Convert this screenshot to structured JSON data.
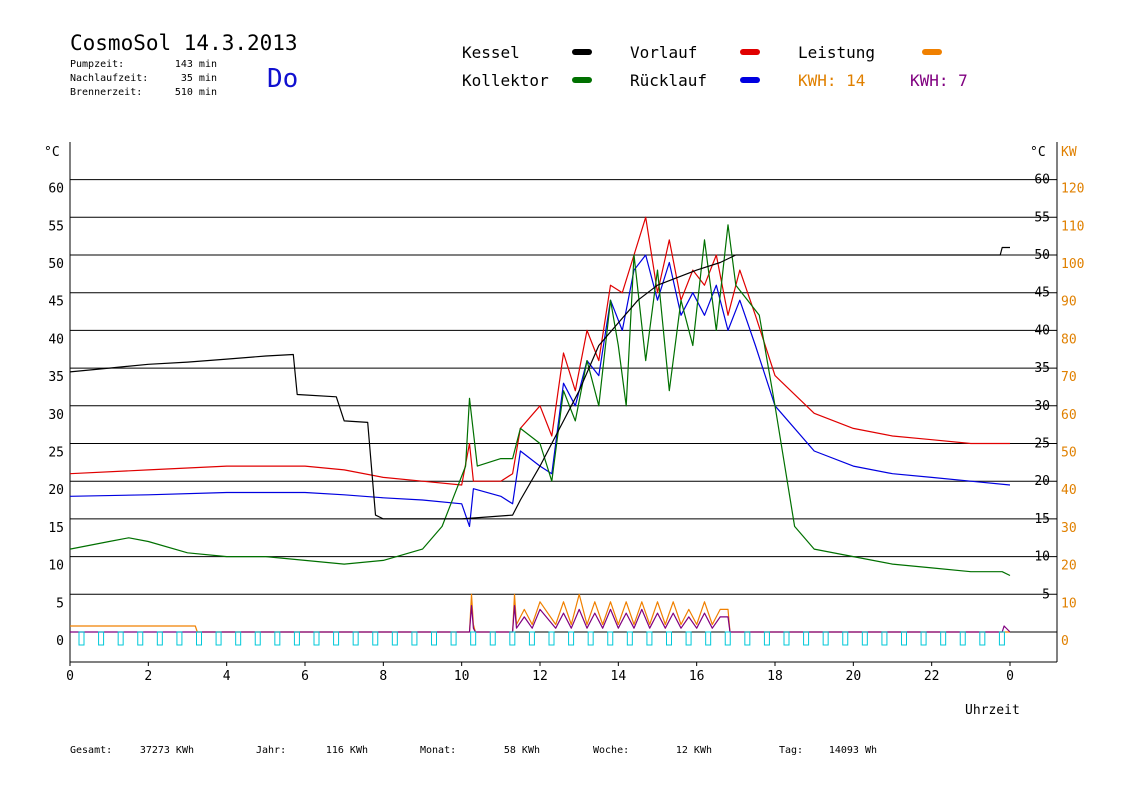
{
  "header": {
    "title": "CosmoSol 14.3.2013",
    "day": "Do",
    "stats": [
      {
        "label": "Pumpzeit:",
        "value": "143 min"
      },
      {
        "label": "Nachlaufzeit:",
        "value": "35 min"
      },
      {
        "label": "Brennerzeit:",
        "value": "510 min"
      }
    ]
  },
  "legend": {
    "items": [
      {
        "label": "Kessel",
        "color": "#000000"
      },
      {
        "label": "Vorlauf",
        "color": "#e00000"
      },
      {
        "label": "Leistung",
        "color": "#f08000"
      },
      {
        "label": "Kollektor",
        "color": "#007000"
      },
      {
        "label": "Rücklauf",
        "color": "#0000e0"
      }
    ],
    "kwh": [
      {
        "label": "KWH: 14",
        "color": "#e08000"
      },
      {
        "label": "KWH: 7",
        "color": "#800080"
      }
    ]
  },
  "footer": {
    "items": [
      {
        "label": "Gesamt:",
        "value": "37273 KWh"
      },
      {
        "label": "Jahr:",
        "value": "116 KWh"
      },
      {
        "label": "Monat:",
        "value": "58 KWh"
      },
      {
        "label": "Woche:",
        "value": "12 KWh"
      },
      {
        "label": "Tag:",
        "value": "14093 Wh"
      }
    ]
  },
  "chart_data": {
    "type": "line",
    "xlabel": "Uhrzeit",
    "ylabel_left": "°C",
    "ylabel_right_temp": "°C",
    "ylabel_right_power": "KW",
    "x_ticks": [
      "0",
      "2",
      "4",
      "6",
      "8",
      "10",
      "12",
      "14",
      "16",
      "18",
      "20",
      "22",
      "0"
    ],
    "xlim": [
      0,
      24
    ],
    "ylim": [
      0,
      65
    ],
    "y_ticks_left": [
      "0",
      "5",
      "10",
      "15",
      "20",
      "25",
      "30",
      "35",
      "40",
      "45",
      "50",
      "55",
      "60"
    ],
    "y_ticks_right_temp": [
      "5",
      "10",
      "15",
      "20",
      "25",
      "30",
      "35",
      "40",
      "45",
      "50",
      "55",
      "60"
    ],
    "y_ticks_right_power": [
      "0",
      "10",
      "20",
      "30",
      "40",
      "50",
      "60",
      "70",
      "80",
      "90",
      "100",
      "110",
      "120"
    ],
    "grid": true,
    "series": [
      {
        "name": "Kessel",
        "color": "#000000",
        "x": [
          0,
          1,
          2,
          3,
          4,
          5,
          5.7,
          5.8,
          6.8,
          7.0,
          7.6,
          7.8,
          8,
          10,
          11.3,
          11.5,
          12,
          12.5,
          13,
          13.5,
          14,
          14.5,
          15,
          16,
          16.6,
          17,
          18,
          20,
          22,
          23.75,
          23.8,
          24
        ],
        "y": [
          34.5,
          35,
          35.5,
          35.8,
          36.2,
          36.6,
          36.8,
          31.5,
          31.2,
          28,
          27.8,
          15.5,
          15,
          15,
          15.5,
          17.5,
          22,
          27,
          32,
          38,
          41,
          44,
          46,
          48,
          49,
          50,
          50,
          50,
          50,
          50,
          51,
          51
        ]
      },
      {
        "name": "Vorlauf",
        "color": "#e00000",
        "x": [
          0,
          2,
          4,
          5,
          6,
          7,
          8,
          9,
          10,
          10.2,
          10.3,
          11,
          11.3,
          11.5,
          12,
          12.3,
          12.6,
          12.9,
          13.2,
          13.5,
          13.8,
          14.1,
          14.4,
          14.7,
          15.0,
          15.3,
          15.6,
          15.9,
          16.2,
          16.5,
          16.8,
          17.1,
          17.5,
          18,
          19,
          20,
          21,
          22,
          23,
          24
        ],
        "y": [
          21,
          21.5,
          22,
          22,
          22,
          21.5,
          20.5,
          20,
          19.5,
          25,
          20,
          20,
          21,
          27,
          30,
          26,
          37,
          32,
          40,
          36,
          46,
          45,
          50,
          55,
          45,
          52,
          44,
          48,
          46,
          50,
          42,
          48,
          42,
          34,
          29,
          27,
          26,
          25.5,
          25,
          25
        ]
      },
      {
        "name": "Rücklauf",
        "color": "#0000e0",
        "x": [
          0,
          2,
          4,
          5,
          6,
          7,
          8,
          9,
          10,
          10.2,
          10.3,
          11,
          11.3,
          11.5,
          12,
          12.3,
          12.6,
          12.9,
          13.2,
          13.5,
          13.8,
          14.1,
          14.4,
          14.7,
          15.0,
          15.3,
          15.6,
          15.9,
          16.2,
          16.5,
          16.8,
          17.1,
          17.5,
          18,
          19,
          20,
          21,
          22,
          23,
          24
        ],
        "y": [
          18,
          18.2,
          18.5,
          18.5,
          18.5,
          18.2,
          17.8,
          17.5,
          17,
          14,
          19,
          18,
          17,
          24,
          22,
          21,
          33,
          30,
          36,
          34,
          44,
          40,
          48,
          50,
          44,
          49,
          42,
          45,
          42,
          46,
          40,
          44,
          38,
          30,
          24,
          22,
          21,
          20.5,
          20,
          19.5
        ]
      },
      {
        "name": "Kollektor",
        "color": "#007000",
        "x": [
          0,
          1,
          1.5,
          2,
          3,
          4,
          5,
          6,
          7,
          8,
          9,
          9.5,
          9.8,
          10.1,
          10.2,
          10.4,
          11,
          11.3,
          11.5,
          12,
          12.3,
          12.6,
          12.9,
          13.2,
          13.5,
          13.8,
          14.0,
          14.2,
          14.4,
          14.7,
          15.0,
          15.3,
          15.6,
          15.9,
          16.2,
          16.5,
          16.8,
          17.0,
          17.3,
          17.6,
          18,
          18.5,
          19,
          20,
          21,
          22,
          23,
          23.8,
          24
        ],
        "y": [
          11,
          12,
          12.5,
          12,
          10.5,
          10,
          10,
          9.5,
          9,
          9.5,
          11,
          14,
          18,
          22,
          31,
          22,
          23,
          23,
          27,
          25,
          20,
          32,
          28,
          36,
          30,
          44,
          38,
          30,
          50,
          36,
          48,
          32,
          44,
          38,
          52,
          40,
          54,
          46,
          44,
          42,
          30,
          14,
          11,
          10,
          9,
          8.5,
          8,
          8,
          7.5
        ]
      },
      {
        "name": "Leistung",
        "color": "#f08000",
        "x": [
          0,
          3.2,
          3.25,
          10.2,
          10.25,
          10.3,
          10.35,
          11.3,
          11.35,
          11.4,
          11.6,
          11.8,
          12,
          12.4,
          12.6,
          12.8,
          13.0,
          13.2,
          13.4,
          13.6,
          13.8,
          14.0,
          14.2,
          14.4,
          14.6,
          14.8,
          15.0,
          15.2,
          15.4,
          15.6,
          15.8,
          16.0,
          16.2,
          16.4,
          16.6,
          16.8,
          16.85,
          16.9,
          24
        ],
        "y": [
          0.8,
          0.8,
          0,
          0,
          5,
          1,
          0,
          0,
          5,
          1,
          3,
          1,
          4,
          1,
          4,
          1,
          5,
          1,
          4,
          1,
          4,
          1,
          4,
          1,
          4,
          1,
          4,
          1,
          4,
          1,
          3,
          1,
          4,
          1,
          3,
          3,
          0,
          0,
          0
        ]
      },
      {
        "name": "KWH",
        "color": "#800080",
        "x": [
          0,
          10.2,
          10.25,
          10.3,
          10.35,
          11.3,
          11.35,
          11.4,
          11.6,
          11.8,
          12,
          12.4,
          12.6,
          12.8,
          13.0,
          13.2,
          13.4,
          13.6,
          13.8,
          14.0,
          14.2,
          14.4,
          14.6,
          14.8,
          15.0,
          15.2,
          15.4,
          15.6,
          15.8,
          16.0,
          16.2,
          16.4,
          16.6,
          16.8,
          16.85,
          23.8,
          23.85,
          24
        ],
        "y": [
          0,
          0,
          3.5,
          0.5,
          0,
          0,
          3.5,
          0.5,
          2,
          0.5,
          3,
          0.5,
          2.5,
          0.5,
          3,
          0.5,
          2.5,
          0.5,
          3,
          0.5,
          2.5,
          0.5,
          3,
          0.5,
          2.5,
          0.5,
          2.5,
          0.5,
          2,
          0.5,
          2.5,
          0.5,
          2,
          2,
          0,
          0,
          0.8,
          0
        ]
      }
    ]
  }
}
